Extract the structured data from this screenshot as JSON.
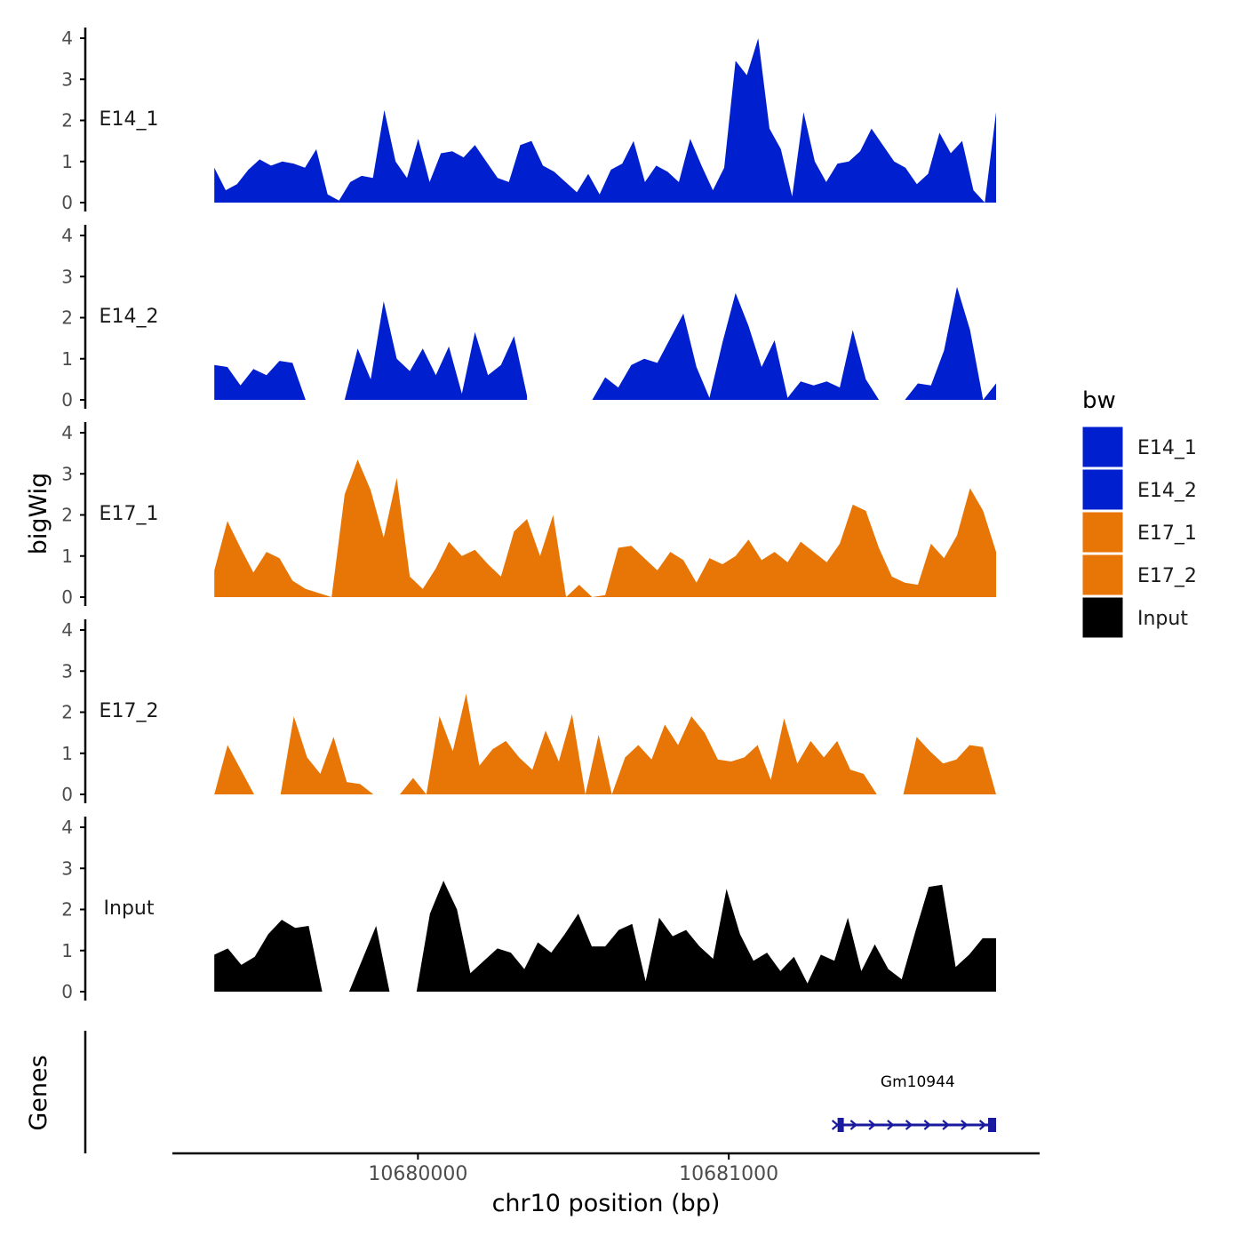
{
  "chart_data": {
    "type": "area",
    "ylabel": "bigWig",
    "xlabel": "chr10 position (bp)",
    "genes_label": "Genes",
    "xlim": [
      10679210,
      10682000
    ],
    "x_range": [
      10679345,
      10681860
    ],
    "x_ticks": [
      10680000,
      10681000
    ],
    "x_tick_labels": [
      "10680000",
      "10681000"
    ],
    "ylim": [
      0,
      4
    ],
    "y_ticks": [
      0,
      1,
      2,
      3,
      4
    ],
    "y_tick_labels": [
      "0",
      "1",
      "2",
      "3",
      "4"
    ],
    "legend": {
      "title": "bw",
      "position": "right",
      "entries": [
        {
          "label": "E14_1",
          "color": "#0020d0"
        },
        {
          "label": "E14_2",
          "color": "#0020d0"
        },
        {
          "label": "E17_1",
          "color": "#e87606"
        },
        {
          "label": "E17_2",
          "color": "#e87606"
        },
        {
          "label": "Input",
          "color": "#000000"
        }
      ]
    },
    "series": [
      {
        "name": "E14_1",
        "color": "#0020d0",
        "values": [
          0.85,
          0.3,
          0.45,
          0.8,
          1.05,
          0.9,
          1.0,
          0.95,
          0.85,
          1.3,
          0.2,
          0.05,
          0.5,
          0.65,
          0.6,
          2.25,
          1.0,
          0.6,
          1.55,
          0.5,
          1.2,
          1.25,
          1.1,
          1.4,
          1.0,
          0.6,
          0.5,
          1.4,
          1.5,
          0.9,
          0.75,
          0.5,
          0.25,
          0.7,
          0.2,
          0.8,
          0.95,
          1.5,
          0.5,
          0.9,
          0.75,
          0.5,
          1.55,
          0.9,
          0.3,
          0.85,
          3.45,
          3.1,
          4.0,
          1.8,
          1.3,
          0.15,
          2.2,
          1.0,
          0.5,
          0.95,
          1.0,
          1.25,
          1.8,
          1.4,
          1.0,
          0.85,
          0.45,
          0.7,
          1.7,
          1.2,
          1.5,
          0.3,
          0.0,
          2.2
        ]
      },
      {
        "name": "E14_2",
        "color": "#0020d0",
        "values": [
          0.85,
          0.8,
          0.35,
          0.75,
          0.6,
          0.95,
          0.9,
          0.0,
          null,
          null,
          0.0,
          1.25,
          0.5,
          2.4,
          1.0,
          0.7,
          1.25,
          0.6,
          1.3,
          0.15,
          1.65,
          0.6,
          0.85,
          1.55,
          0.1,
          null,
          null,
          null,
          null,
          0.0,
          0.55,
          0.3,
          0.85,
          1.0,
          0.9,
          1.5,
          2.1,
          0.8,
          0.05,
          1.4,
          2.6,
          1.8,
          0.8,
          1.45,
          0.05,
          0.45,
          0.35,
          0.45,
          0.3,
          1.7,
          0.5,
          0.0,
          null,
          0.0,
          0.4,
          0.35,
          1.2,
          2.75,
          1.7,
          0.0,
          0.4
        ]
      },
      {
        "name": "E17_1",
        "color": "#e87606",
        "values": [
          0.65,
          1.85,
          1.2,
          0.6,
          1.1,
          0.95,
          0.4,
          0.2,
          0.1,
          0.0,
          2.5,
          3.35,
          2.6,
          1.45,
          2.9,
          0.5,
          0.2,
          0.7,
          1.35,
          1.0,
          1.15,
          0.8,
          0.5,
          1.6,
          1.9,
          1.0,
          2.0,
          0.0,
          0.3,
          0.0,
          0.05,
          1.2,
          1.25,
          0.95,
          0.65,
          1.1,
          0.9,
          0.35,
          0.95,
          0.8,
          1.0,
          1.4,
          0.9,
          1.1,
          0.85,
          1.35,
          1.1,
          0.85,
          1.3,
          2.25,
          2.1,
          1.2,
          0.5,
          0.35,
          0.3,
          1.3,
          0.95,
          1.5,
          2.65,
          2.1,
          1.1
        ]
      },
      {
        "name": "E17_2",
        "color": "#e87606",
        "values": [
          0.0,
          1.2,
          0.6,
          0.0,
          null,
          0.0,
          1.9,
          0.9,
          0.5,
          1.4,
          0.3,
          0.25,
          0.0,
          null,
          0.0,
          0.4,
          0.0,
          1.9,
          1.05,
          2.45,
          0.7,
          1.1,
          1.3,
          0.9,
          0.6,
          1.55,
          0.8,
          1.95,
          0.0,
          1.45,
          0.0,
          0.9,
          1.2,
          0.85,
          1.7,
          1.2,
          1.9,
          1.5,
          0.85,
          0.8,
          0.9,
          1.2,
          0.35,
          1.85,
          0.75,
          1.3,
          0.9,
          1.3,
          0.6,
          0.5,
          0.0,
          null,
          0.0,
          1.4,
          1.05,
          0.75,
          0.85,
          1.2,
          1.15,
          0.0
        ]
      },
      {
        "name": "Input",
        "color": "#000000",
        "values": [
          0.9,
          1.05,
          0.65,
          0.85,
          1.4,
          1.75,
          1.55,
          1.6,
          0.0,
          null,
          0.0,
          0.8,
          1.6,
          0.0,
          null,
          0.0,
          1.9,
          2.7,
          2.0,
          0.45,
          0.75,
          1.05,
          0.95,
          0.55,
          1.2,
          0.95,
          1.4,
          1.9,
          1.1,
          1.1,
          1.5,
          1.65,
          0.25,
          1.8,
          1.35,
          1.5,
          1.1,
          0.8,
          2.5,
          1.4,
          0.75,
          0.95,
          0.5,
          0.85,
          0.2,
          0.9,
          0.75,
          1.8,
          0.5,
          1.15,
          0.55,
          0.3,
          1.45,
          2.55,
          2.6,
          0.6,
          0.9,
          1.3,
          1.3
        ]
      }
    ],
    "genes": [
      {
        "name": "Gm10944",
        "start": 10681350,
        "end": 10681860,
        "strand": "+",
        "color": "#1a1a9e"
      }
    ]
  }
}
